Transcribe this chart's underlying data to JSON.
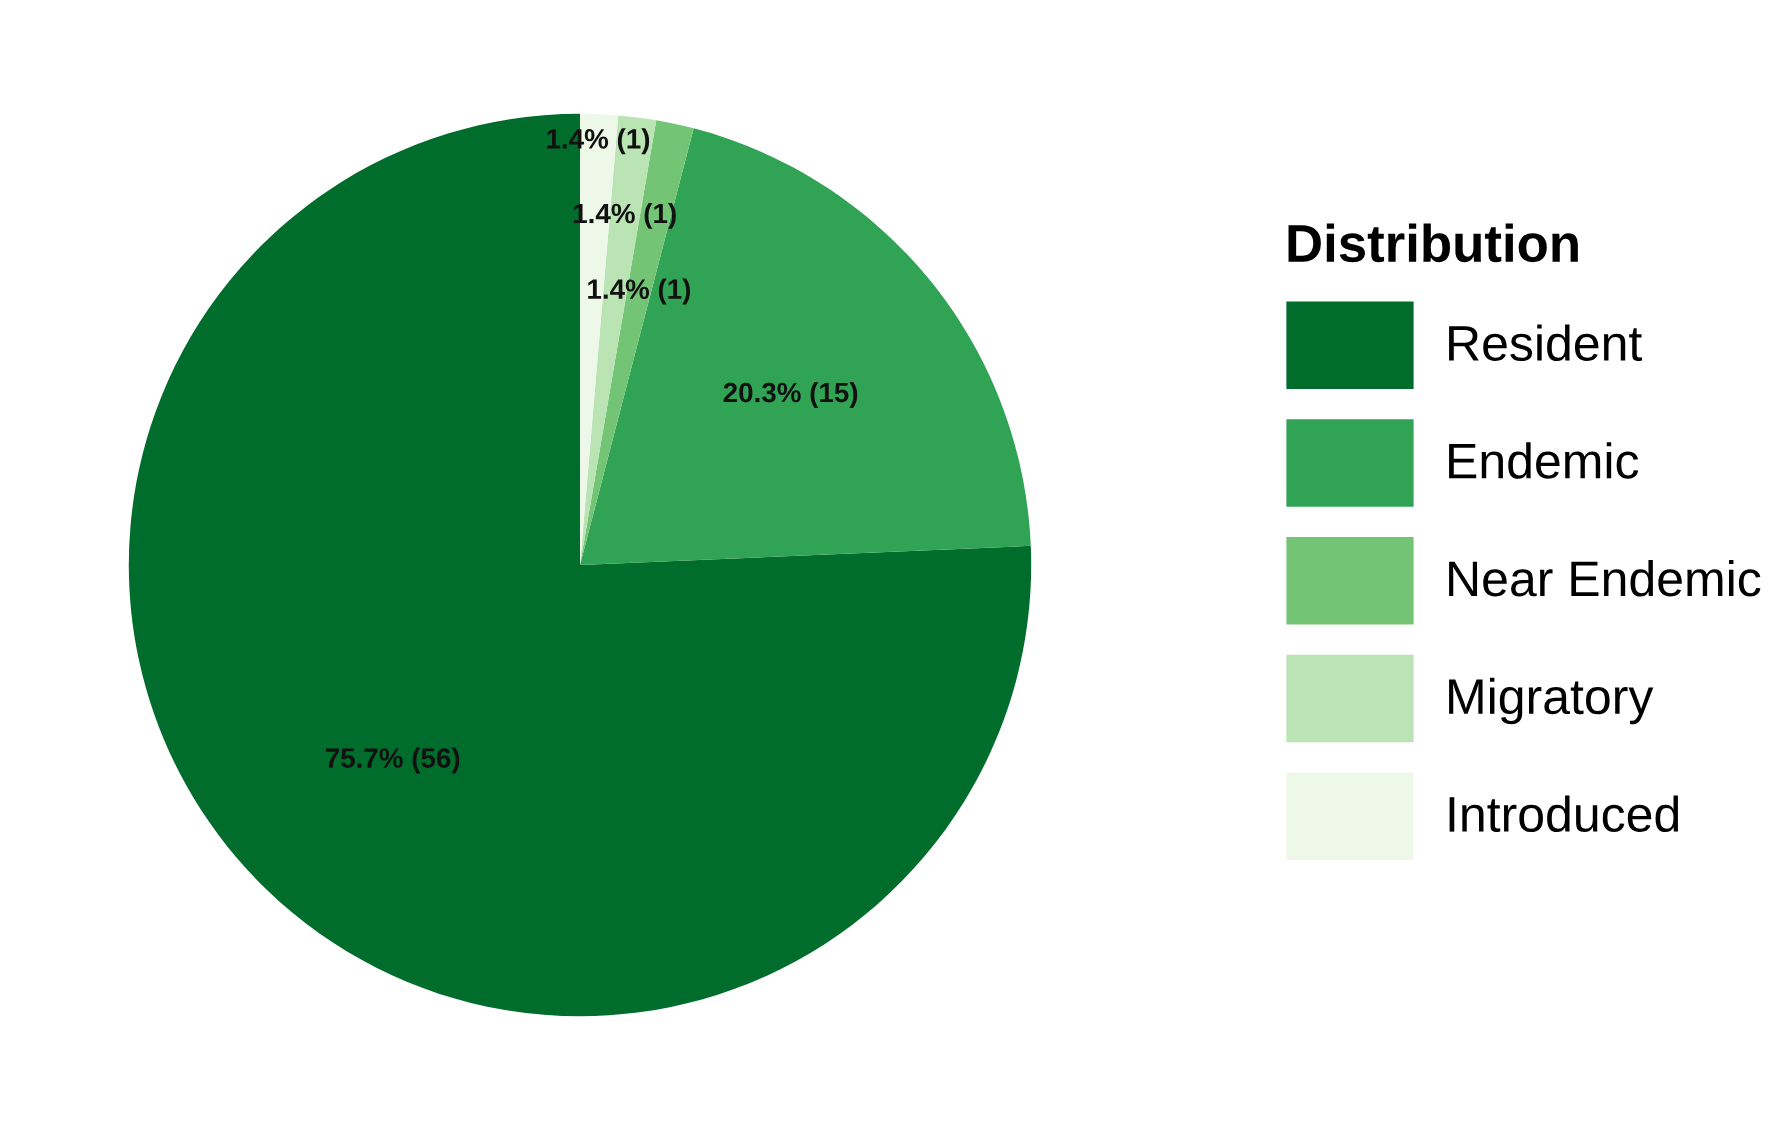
{
  "chart_data": {
    "type": "pie",
    "legend_title": "Distribution",
    "legend": "right",
    "categories": [
      "Resident",
      "Endemic",
      "Near Endemic",
      "Migratory",
      "Introduced"
    ],
    "values": [
      56,
      15,
      1,
      1,
      1
    ],
    "colors": [
      "#006d2c",
      "#31a354",
      "#74c476",
      "#bae4b3",
      "#edf8e9"
    ],
    "value_labels": [
      "75.7% (56)",
      "20.3% (15)",
      "1.4% (1)",
      "1.4% (1)",
      "1.4% (1)"
    ]
  }
}
